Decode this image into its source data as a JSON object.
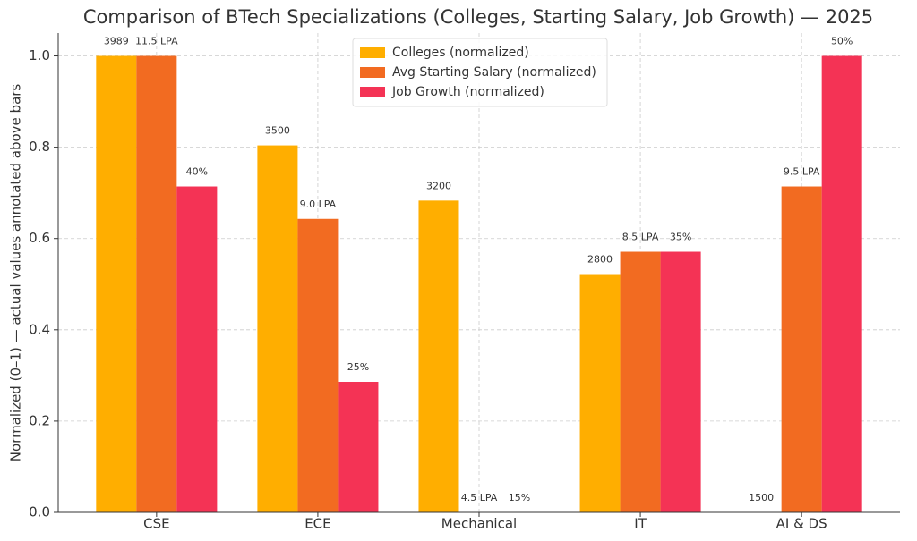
{
  "chart_data": {
    "type": "bar",
    "title": "Comparison of BTech Specializations (Colleges, Starting Salary, Job Growth) — 2025",
    "y_label": "Normalized (0–1) — actual values annotated above bars",
    "categories": [
      "CSE",
      "ECE",
      "Mechanical",
      "IT",
      "AI & DS"
    ],
    "series": [
      {
        "name": "Colleges (normalized)",
        "color": "#ffae00",
        "values": [
          1.0,
          0.804,
          0.683,
          0.522,
          0.0
        ],
        "annotations": [
          "3989",
          "3500",
          "3200",
          "2800",
          "1500"
        ]
      },
      {
        "name": "Avg Starting Salary (normalized)",
        "color": "#f26b21",
        "values": [
          1.0,
          0.643,
          0.0,
          0.571,
          0.714
        ],
        "annotations": [
          "11.5 LPA",
          "9.0 LPA",
          "4.5 LPA",
          "8.5 LPA",
          "9.5 LPA"
        ]
      },
      {
        "name": "Job Growth (normalized)",
        "color": "#f43355",
        "values": [
          0.714,
          0.286,
          0.0,
          0.571,
          1.0
        ],
        "annotations": [
          "40%",
          "25%",
          "15%",
          "35%",
          "50%"
        ]
      }
    ],
    "ylim": [
      0,
      1.05
    ],
    "yticks": [
      {
        "value": 0,
        "label": "0.0"
      },
      0.2,
      0.4,
      0.6,
      0.8,
      {
        "value": 1,
        "label": "1.0"
      }
    ],
    "grid": true,
    "legend": "upper center"
  }
}
